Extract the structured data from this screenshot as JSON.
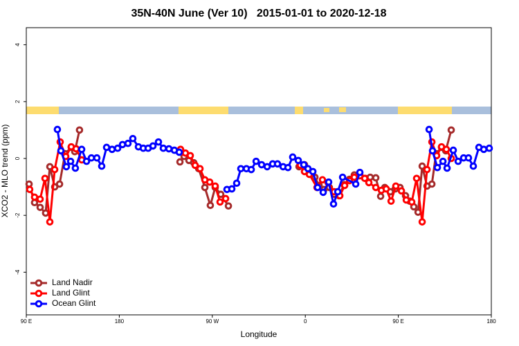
{
  "chart_data": {
    "type": "line",
    "title": "35N-40N June (Ver 10)   2015-01-01 to 2020-12-18",
    "xlabel": "Longitude",
    "ylabel": "XCO2 - MLO trend (ppm)",
    "xlim": [
      90,
      540
    ],
    "ylim": [
      -5.5,
      4.6
    ],
    "xticks": [
      {
        "value": 90,
        "label": "90 E"
      },
      180,
      {
        "value": 270,
        "label": "90 W"
      },
      {
        "value": 360,
        "label": "0"
      },
      {
        "value": 450,
        "label": "90 E"
      },
      {
        "value": 540,
        "label": "180"
      }
    ],
    "yticks": [
      -4,
      -2,
      0,
      2,
      4
    ],
    "legend": "bottomleft",
    "series": [
      {
        "name": "Land Nadir",
        "color": "#a52a2a",
        "x": [
          92.7,
          98.0,
          103.4,
          108.7,
          112.8,
          117.5,
          122.2,
          127.5,
          133.5,
          136.9,
          141.5,
          null,
          238.7,
          242.7,
          247.4,
          252.1,
          256.8,
          262.8,
          268.1,
          272.8,
          278.2,
          285.6,
          null,
          353.9,
          359.2,
          363.9,
          369.3,
          373.3,
          378.0,
          383.3,
          388.0,
          392.7,
          397.4,
          402.8,
          407.4,
          412.8,
          418.2,
          422.8,
          428.2,
          432.9,
          436.9,
          442.3,
          447.0,
          451.6,
          457.0,
          461.0,
          465.0,
          469.1,
          473.1,
          477.8,
          482.5,
          486.5,
          491.8,
          495.9,
          501.2
        ],
        "values": [
          -0.9,
          -1.55,
          -1.72,
          -1.92,
          -0.29,
          -1.0,
          -0.9,
          0.17,
          0.39,
          0.24,
          1.0,
          null,
          -0.12,
          0.07,
          -0.07,
          -0.15,
          -0.36,
          -1.02,
          -1.65,
          -1.02,
          -1.26,
          -1.67,
          null,
          -0.29,
          -0.22,
          -0.46,
          -0.66,
          -0.95,
          -1.09,
          -1.02,
          -1.26,
          -1.31,
          -0.92,
          -0.73,
          -0.58,
          -0.58,
          -0.7,
          -0.66,
          -0.68,
          -1.33,
          -1.02,
          -1.17,
          -1.07,
          -1.02,
          -1.31,
          -1.5,
          -1.7,
          -1.89,
          -0.27,
          -0.97,
          -0.9,
          0.17,
          0.39,
          0.27,
          1.0
        ]
      },
      {
        "name": "Land Glint",
        "color": "#ff0000",
        "x": [
          93.3,
          98.0,
          103.4,
          108.1,
          112.8,
          117.5,
          122.8,
          128.2,
          133.5,
          138.2,
          143.7,
          null,
          239.3,
          244.0,
          248.7,
          253.4,
          258.1,
          262.8,
          267.5,
          272.8,
          277.5,
          282.9,
          null,
          355.2,
          359.2,
          363.9,
          371.3,
          376.6,
          382.0,
          388.0,
          393.4,
          398.1,
          402.8,
          407.4,
          412.8,
          417.5,
          421.5,
          428.2,
          433.6,
          438.3,
          443.0,
          447.6,
          453.0,
          457.7,
          463.0,
          467.7,
          473.1,
          477.8,
          482.5,
          487.1,
          491.8,
          496.5,
          501.2
        ],
        "values": [
          -1.09,
          -1.36,
          -1.43,
          -0.7,
          -2.23,
          -0.39,
          0.58,
          0.07,
          0.41,
          0.34,
          -0.05,
          null,
          0.32,
          0.19,
          0.1,
          -0.24,
          -0.36,
          -0.75,
          -0.83,
          -0.97,
          -1.53,
          -1.41,
          null,
          -0.24,
          -0.46,
          -0.56,
          -1.02,
          -0.75,
          -0.85,
          -1.17,
          -1.31,
          -0.95,
          -0.78,
          -0.66,
          -0.61,
          -0.7,
          -0.85,
          -1.02,
          -1.12,
          -1.07,
          -1.5,
          -0.97,
          -1.14,
          -1.46,
          -1.53,
          -0.7,
          -2.23,
          -0.39,
          0.58,
          0.1,
          0.41,
          0.32,
          0.0
        ]
      },
      {
        "name": "Ocean Glint",
        "color": "#0000ff",
        "x": [
          120.1,
          123.5,
          128.8,
          132.9,
          137.5,
          143.6,
          148.3,
          153.0,
          158.3,
          163.0,
          167.7,
          173.0,
          178.4,
          183.1,
          188.4,
          193.1,
          198.5,
          203.2,
          207.9,
          212.6,
          217.9,
          222.6,
          228.0,
          233.3,
          238.0,
          null,
          284.2,
          288.9,
          293.6,
          297.6,
          303.0,
          307.7,
          312.4,
          317.7,
          323.1,
          328.4,
          333.1,
          338.5,
          343.2,
          347.8,
          353.2,
          358.5,
          362.6,
          367.3,
          371.9,
          377.3,
          382.6,
          387.3,
          391.4,
          396.1,
          408.8,
          412.8,
          null,
          479.8,
          483.1,
          487.8,
          493.2,
          497.2,
          503.2,
          507.9,
          513.2,
          517.9,
          522.6,
          528.0,
          532.7,
          538.0
        ],
        "values": [
          1.02,
          0.27,
          -0.29,
          -0.1,
          -0.34,
          0.32,
          -0.1,
          0.02,
          0.02,
          -0.27,
          0.39,
          0.32,
          0.36,
          0.49,
          0.53,
          0.7,
          0.41,
          0.36,
          0.36,
          0.44,
          0.58,
          0.36,
          0.34,
          0.29,
          0.22,
          null,
          -1.09,
          -1.07,
          -0.87,
          -0.36,
          -0.36,
          -0.39,
          -0.1,
          -0.22,
          -0.29,
          -0.19,
          -0.19,
          -0.29,
          -0.32,
          0.05,
          -0.07,
          -0.22,
          -0.36,
          -0.46,
          -1.02,
          -1.19,
          -0.83,
          -1.6,
          -1.17,
          -0.66,
          -0.9,
          -0.49,
          null,
          1.02,
          0.27,
          -0.32,
          -0.1,
          -0.34,
          0.29,
          -0.1,
          0.02,
          0.02,
          -0.27,
          0.39,
          0.32,
          0.36
        ]
      }
    ]
  }
}
